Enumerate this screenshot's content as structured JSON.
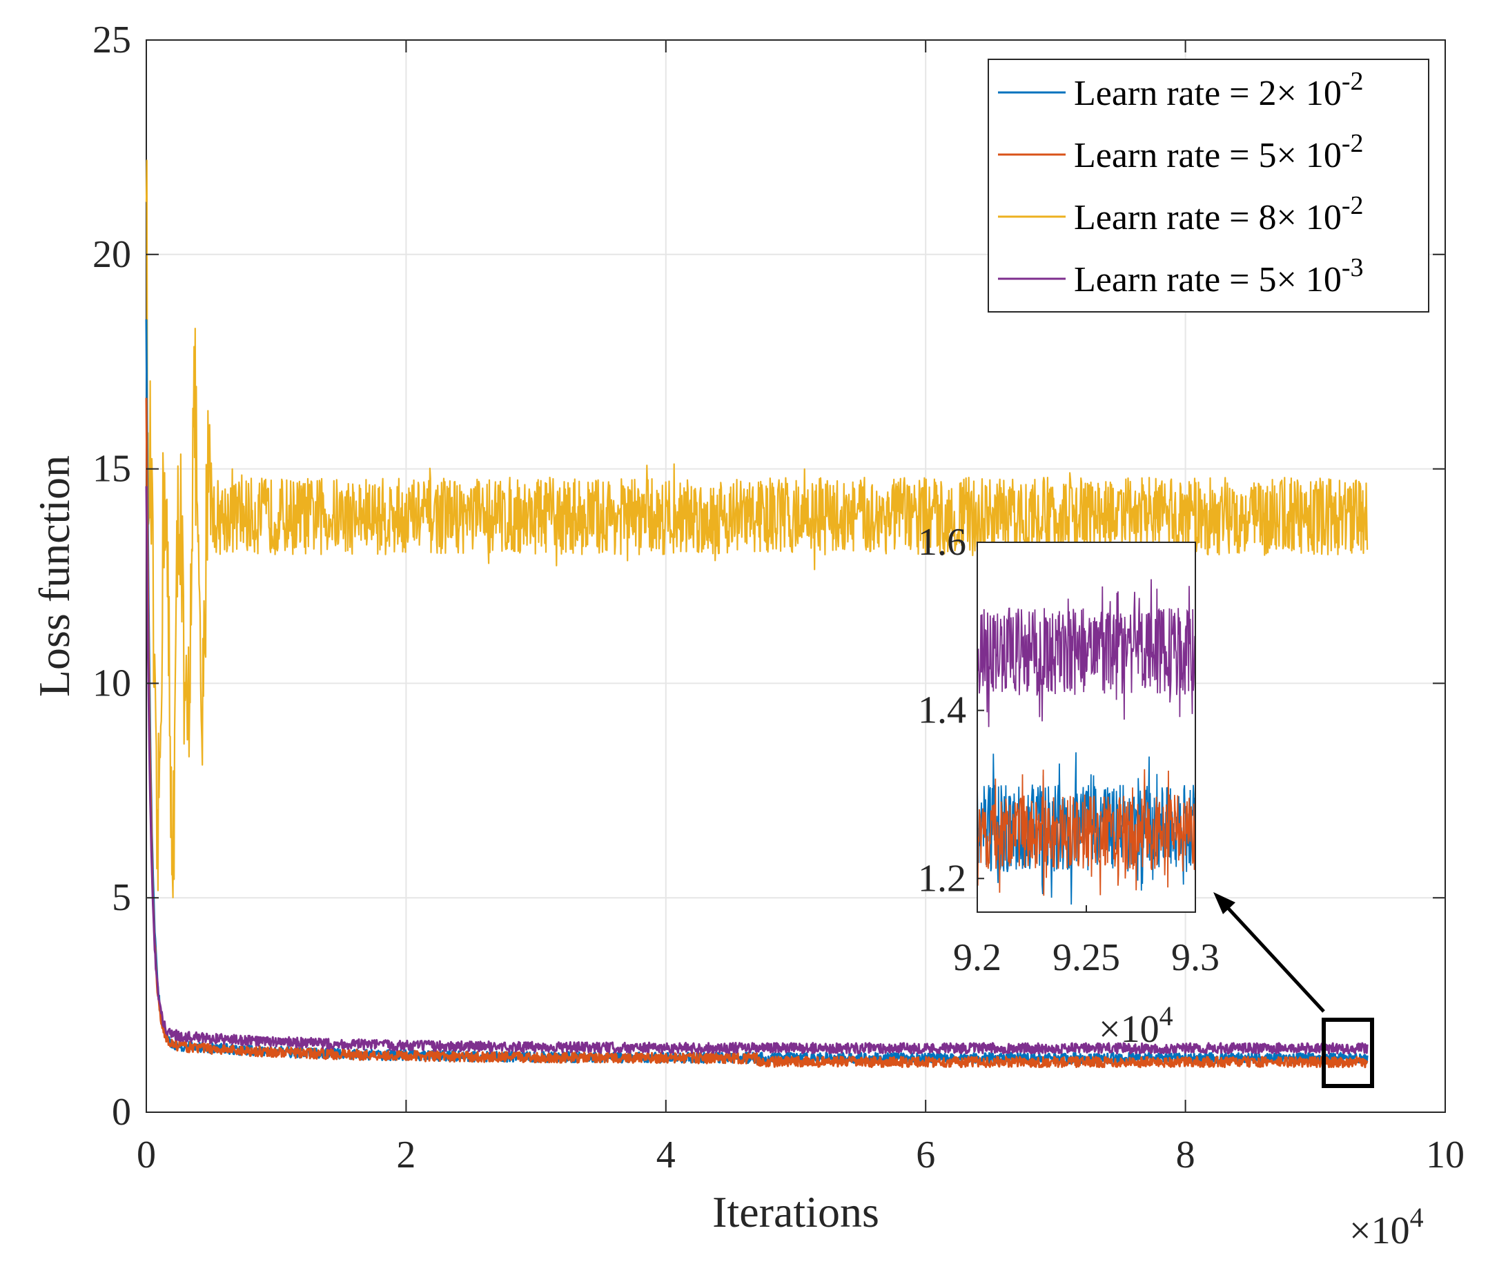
{
  "chart_data": [
    {
      "type": "line",
      "xlabel": "Iterations",
      "ylabel": "Loss function",
      "x_multiplier": "×10",
      "x_multiplier_exp": "4",
      "xlim": [
        0,
        10
      ],
      "ylim": [
        0,
        25
      ],
      "xticks": [
        "0",
        "2",
        "4",
        "6",
        "8",
        "10"
      ],
      "yticks": [
        "0",
        "5",
        "10",
        "15",
        "20",
        "25"
      ],
      "grid": true,
      "legend_position": "top-right",
      "series": [
        {
          "name": "Learn rate = 2× 10",
          "name_exp": "-2",
          "color": "#0072bd",
          "start": 18.2,
          "final": 1.26,
          "spread": 0.12
        },
        {
          "name": "Learn rate = 5× 10",
          "name_exp": "-2",
          "color": "#d95319",
          "start": 16.4,
          "final": 1.25,
          "spread": 0.12
        },
        {
          "name": "Learn rate = 8× 10",
          "name_exp": "-2",
          "color": "#edb120",
          "start": 23.0,
          "final": 13.9,
          "spread": 0.9
        },
        {
          "name": "Learn rate = 5× 10",
          "name_exp": "-3",
          "color": "#7e2f8e",
          "start": 14.3,
          "final": 1.47,
          "spread": 0.12
        }
      ]
    },
    {
      "type": "line",
      "title": "inset",
      "xlim": [
        9.2,
        9.3
      ],
      "ylim": [
        1.16,
        1.6
      ],
      "xticks": [
        "9.2",
        "9.25",
        "9.3"
      ],
      "yticks": [
        "1.2",
        "1.4",
        "1.6"
      ],
      "x_multiplier": "×10",
      "x_multiplier_exp": "4",
      "series": [
        {
          "name": "5e-3",
          "color": "#7e2f8e",
          "mean": 1.47,
          "spread": 0.07
        },
        {
          "name": "2e-2",
          "color": "#0072bd",
          "mean": 1.26,
          "spread": 0.07
        },
        {
          "name": "5e-2",
          "color": "#d95319",
          "mean": 1.255,
          "spread": 0.06
        }
      ]
    }
  ]
}
